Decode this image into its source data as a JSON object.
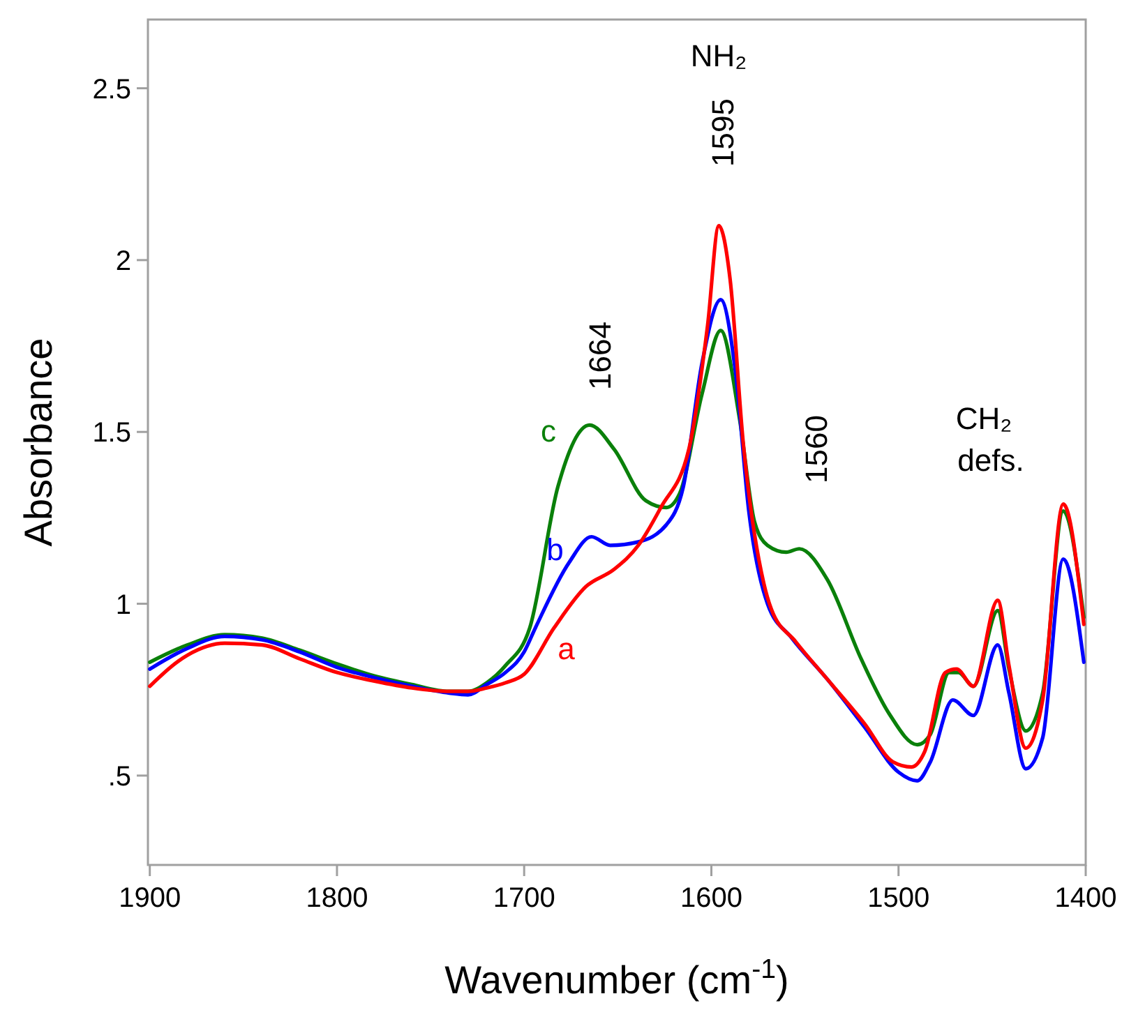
{
  "chart_data": {
    "type": "line",
    "xlabel": "Wavenumber (cm$^{-1}$)",
    "ylabel": "Absorbance",
    "xlim": [
      1901,
      1400
    ],
    "xticks": [
      1900,
      1800,
      1700,
      1600,
      1500,
      1400
    ],
    "ylim": [
      0.24,
      2.7
    ],
    "yticks": [
      {
        "value": 0.5,
        "label": ".5"
      },
      1,
      1.5,
      2,
      2.5
    ],
    "grid": false,
    "marker": "none",
    "line_style": "solid",
    "annotations": [
      "NH₂",
      "1595",
      "1664",
      "1560",
      "CH₂",
      "defs."
    ],
    "series": [
      {
        "name": "a",
        "color": "#ff0000",
        "x": [
          1900,
          1880,
          1860,
          1840,
          1820,
          1800,
          1780,
          1760,
          1740,
          1730,
          1720,
          1710,
          1700,
          1684,
          1667,
          1652,
          1639,
          1627,
          1612,
          1602,
          1596,
          1590,
          1583,
          1572,
          1568,
          1555,
          1538,
          1518,
          1503,
          1493,
          1486,
          1475,
          1469,
          1460,
          1447,
          1441,
          1432,
          1423,
          1412,
          1401
        ],
        "values": [
          0.76,
          0.85,
          0.885,
          0.88,
          0.84,
          0.8,
          0.775,
          0.755,
          0.745,
          0.745,
          0.755,
          0.77,
          0.795,
          0.93,
          1.05,
          1.1,
          1.17,
          1.28,
          1.45,
          1.81,
          2.1,
          1.945,
          1.47,
          1.06,
          0.985,
          0.89,
          0.78,
          0.65,
          0.54,
          0.525,
          0.57,
          0.8,
          0.81,
          0.76,
          1.01,
          0.82,
          0.58,
          0.72,
          1.29,
          0.94
        ]
      },
      {
        "name": "b",
        "color": "#0000ff",
        "x": [
          1900,
          1880,
          1860,
          1840,
          1820,
          1800,
          1780,
          1760,
          1740,
          1730,
          1720,
          1710,
          1700,
          1694,
          1676,
          1664,
          1654,
          1639,
          1624,
          1615,
          1605,
          1595,
          1587,
          1580,
          1570,
          1557,
          1538,
          1518,
          1500,
          1490,
          1483,
          1471,
          1460,
          1447,
          1441,
          1432,
          1423,
          1412,
          1401
        ],
        "values": [
          0.81,
          0.87,
          0.905,
          0.895,
          0.86,
          0.815,
          0.785,
          0.76,
          0.74,
          0.735,
          0.765,
          0.8,
          0.86,
          0.93,
          1.12,
          1.195,
          1.17,
          1.18,
          1.23,
          1.34,
          1.7,
          1.885,
          1.67,
          1.27,
          1.0,
          0.9,
          0.78,
          0.64,
          0.51,
          0.485,
          0.54,
          0.72,
          0.675,
          0.88,
          0.74,
          0.52,
          0.61,
          1.13,
          0.83
        ]
      },
      {
        "name": "c",
        "color": "#0a800a",
        "x": [
          1900,
          1880,
          1860,
          1840,
          1820,
          1800,
          1780,
          1760,
          1740,
          1730,
          1720,
          1710,
          1697,
          1682,
          1665,
          1652,
          1635,
          1624,
          1617,
          1605,
          1595,
          1585,
          1577,
          1570,
          1560,
          1553,
          1538,
          1520,
          1505,
          1490,
          1483,
          1473,
          1468,
          1460,
          1447,
          1441,
          1432,
          1423,
          1412,
          1401
        ],
        "values": [
          0.83,
          0.88,
          0.91,
          0.9,
          0.865,
          0.825,
          0.79,
          0.765,
          0.745,
          0.745,
          0.77,
          0.82,
          0.93,
          1.34,
          1.52,
          1.45,
          1.3,
          1.28,
          1.32,
          1.61,
          1.795,
          1.54,
          1.24,
          1.17,
          1.15,
          1.16,
          1.07,
          0.84,
          0.68,
          0.59,
          0.62,
          0.8,
          0.8,
          0.76,
          0.98,
          0.81,
          0.63,
          0.74,
          1.27,
          0.96
        ]
      }
    ]
  }
}
